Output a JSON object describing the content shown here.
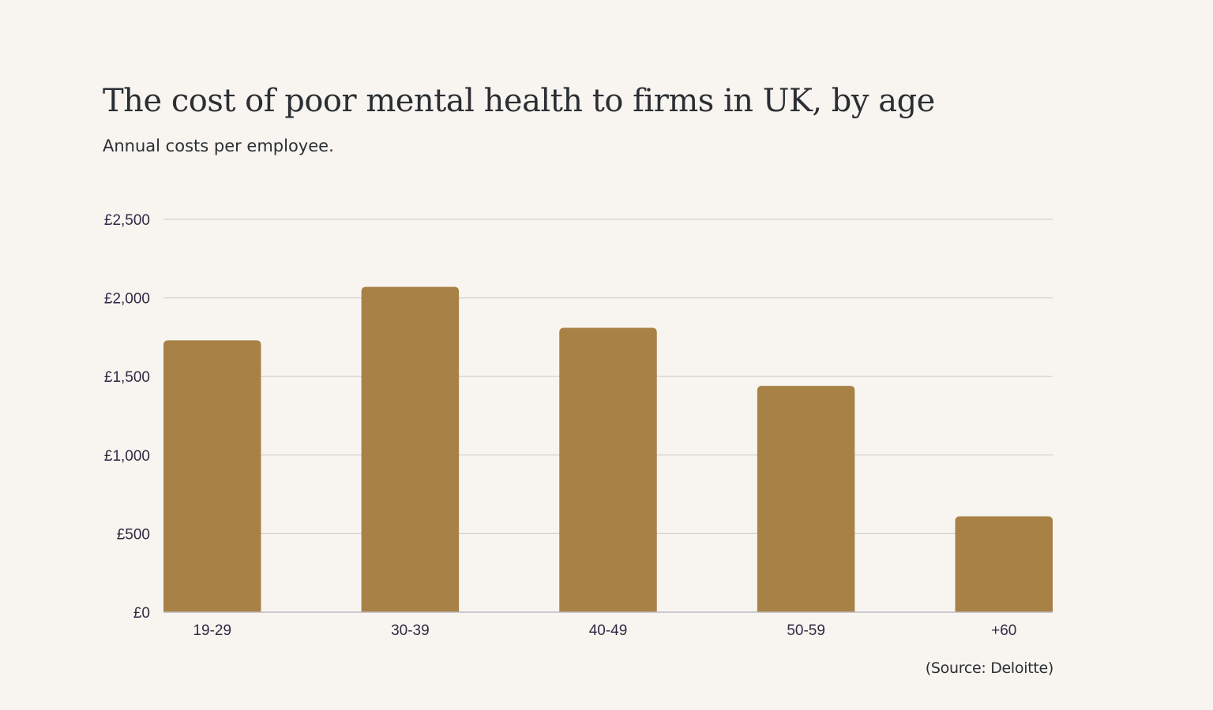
{
  "header": {
    "title": "The cost of poor mental health to firms in UK, by age",
    "subtitle": "Annual costs per employee."
  },
  "footer": {
    "source": "(Source: Deloitte)"
  },
  "colors": {
    "bar": "#a88146",
    "grid": "#d2cfd2",
    "axis": "#bdb9c2",
    "text": "#2e2a44",
    "background": "#f8f5f0"
  },
  "chart_data": {
    "type": "bar",
    "title": "The cost of poor mental health to firms in UK, by age",
    "subtitle": "Annual costs per employee.",
    "xlabel": "",
    "ylabel": "",
    "categories": [
      "19-29",
      "30-39",
      "40-49",
      "50-59",
      "+60"
    ],
    "values": [
      1730,
      2070,
      1810,
      1440,
      610
    ],
    "ylim": [
      0,
      2500
    ],
    "yticks": [
      0,
      500,
      1000,
      1500,
      2000,
      2500
    ],
    "ytick_labels": [
      "£0",
      "£500",
      "£1,000",
      "£1,500",
      "£2,000",
      "£2,500"
    ],
    "grid": true,
    "legend": "none"
  }
}
